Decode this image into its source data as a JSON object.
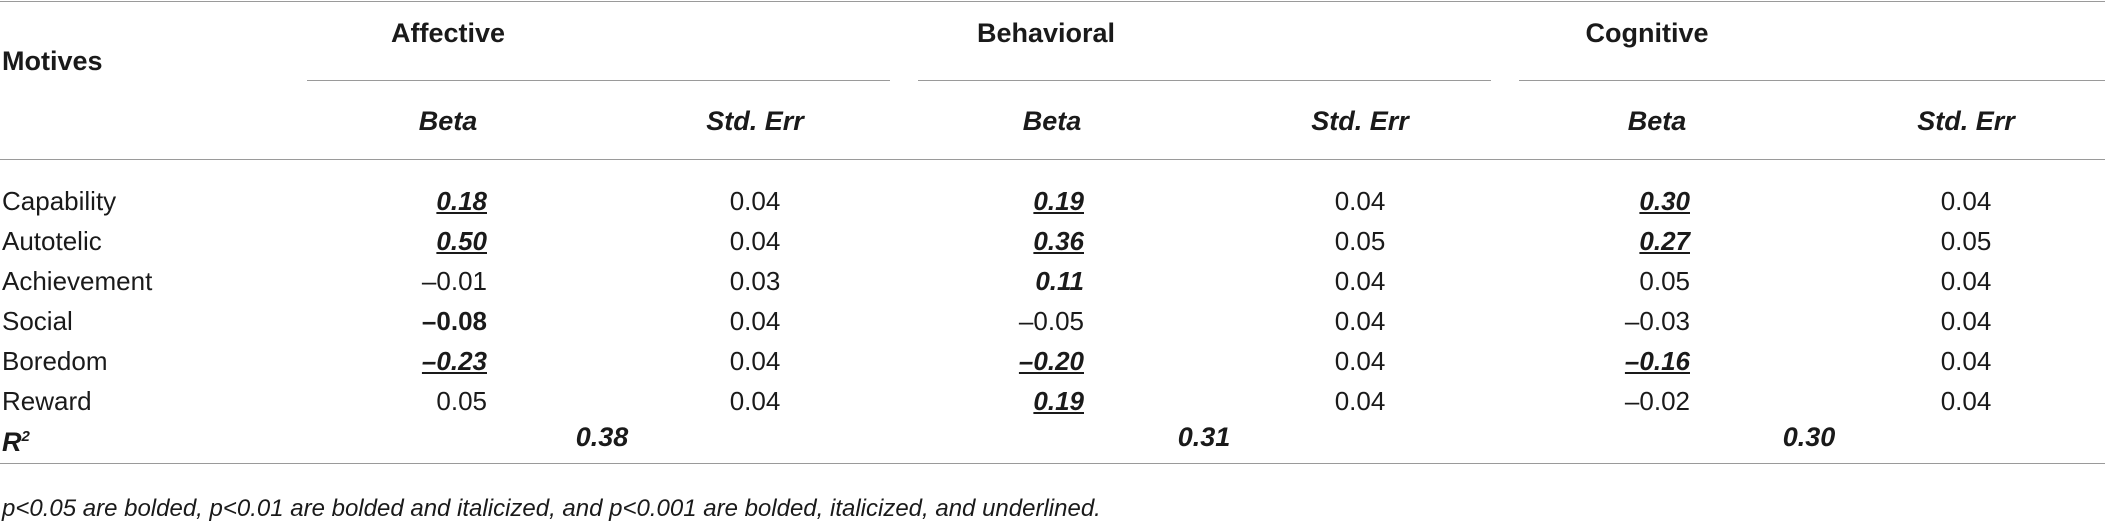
{
  "table": {
    "stub_header": "Motives",
    "groups": [
      {
        "label": "Affective"
      },
      {
        "label": "Behavioral"
      },
      {
        "label": "Cognitive"
      }
    ],
    "subheaders": {
      "beta": "Beta",
      "se": "Std. Err"
    },
    "rows": [
      {
        "motive": "Capability",
        "cells": [
          {
            "beta": "0.18",
            "beta_style": "biu",
            "se": "0.04"
          },
          {
            "beta": "0.19",
            "beta_style": "biu",
            "se": "0.04"
          },
          {
            "beta": "0.30",
            "beta_style": "biu",
            "se": "0.04"
          }
        ]
      },
      {
        "motive": "Autotelic",
        "cells": [
          {
            "beta": "0.50",
            "beta_style": "biu",
            "se": "0.04"
          },
          {
            "beta": "0.36",
            "beta_style": "biu",
            "se": "0.05"
          },
          {
            "beta": "0.27",
            "beta_style": "biu",
            "se": "0.05"
          }
        ]
      },
      {
        "motive": "Achievement",
        "cells": [
          {
            "beta": "–0.01",
            "beta_style": "plain",
            "se": "0.03"
          },
          {
            "beta": "0.11",
            "beta_style": "bi",
            "se": "0.04"
          },
          {
            "beta": "0.05",
            "beta_style": "plain",
            "se": "0.04"
          }
        ]
      },
      {
        "motive": "Social",
        "cells": [
          {
            "beta": "–0.08",
            "beta_style": "b",
            "se": "0.04"
          },
          {
            "beta": "–0.05",
            "beta_style": "plain",
            "se": "0.04"
          },
          {
            "beta": "–0.03",
            "beta_style": "plain",
            "se": "0.04"
          }
        ]
      },
      {
        "motive": "Boredom",
        "cells": [
          {
            "beta": "–0.23",
            "beta_style": "biu",
            "se": "0.04"
          },
          {
            "beta": "–0.20",
            "beta_style": "biu",
            "se": "0.04"
          },
          {
            "beta": "–0.16",
            "beta_style": "biu",
            "se": "0.04"
          }
        ]
      },
      {
        "motive": "Reward",
        "cells": [
          {
            "beta": "0.05",
            "beta_style": "plain",
            "se": "0.04"
          },
          {
            "beta": "0.19",
            "beta_style": "biu",
            "se": "0.04"
          },
          {
            "beta": "–0.02",
            "beta_style": "plain",
            "se": "0.04"
          }
        ]
      }
    ],
    "r2": {
      "label": "R",
      "sup": "2",
      "values": [
        "0.38",
        "0.31",
        "0.30"
      ]
    },
    "footnote": "p<0.05 are bolded, p<0.01 are bolded and italicized, and p<0.001 are bolded, italicized, and underlined."
  }
}
